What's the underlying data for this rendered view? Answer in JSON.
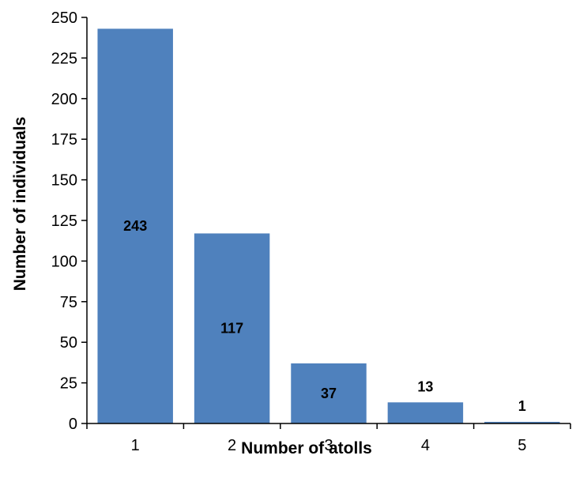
{
  "chart_data": {
    "type": "bar",
    "title": "",
    "xlabel": "Number of atolls",
    "ylabel": "Number of individuals",
    "categories": [
      "1",
      "2",
      "3",
      "4",
      "5"
    ],
    "values": [
      243,
      117,
      37,
      13,
      1
    ],
    "data_labels": [
      "243",
      "117",
      "37",
      "13",
      "1"
    ],
    "ylim": [
      0,
      250
    ],
    "yticks": [
      "0",
      "25",
      "50",
      "75",
      "100",
      "125",
      "150",
      "175",
      "200",
      "225",
      "250"
    ],
    "grid": false,
    "legend": "none",
    "bar_color": "#4f81bd"
  }
}
